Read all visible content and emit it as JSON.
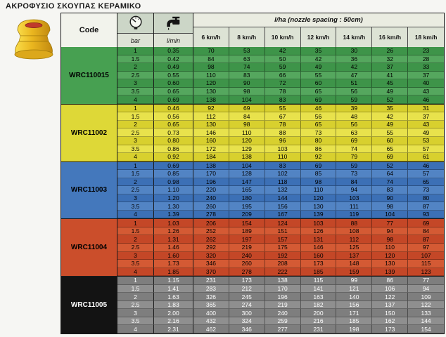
{
  "title": "ΑΚΡΟΦΥΣΙΟ ΣΚΟΥΠΑΣ ΚΕΡΑΜΙΚΟ",
  "table": {
    "code_label": "Code",
    "bar_label": "bar",
    "lmin_label": "l/min",
    "lha_label": "l/ha (nozzle spacing : 50cm)",
    "speeds": [
      "6 km/h",
      "8 km/h",
      "10 km/h",
      "12 km/h",
      "14 km/h",
      "16 km/h",
      "18 km/h"
    ],
    "icons": {
      "pressure": "pressure-gauge-icon",
      "flow": "tap-icon"
    }
  },
  "nozzle_image": {
    "body_color": "#e9b81f",
    "tip_color": "#c0392b"
  },
  "groups": [
    {
      "code": "WRC110015",
      "iso_color": "green",
      "colors": {
        "row": "#3e9449",
        "row_alt": "#55a75e",
        "code_bg": "#47a051",
        "text": "#000000",
        "code_text": "#000000"
      },
      "rows": [
        {
          "bar": "1",
          "lmin": "0.35",
          "lha": [
            "70",
            "53",
            "42",
            "35",
            "30",
            "26",
            "23"
          ]
        },
        {
          "bar": "1.5",
          "lmin": "0.42",
          "lha": [
            "84",
            "63",
            "50",
            "42",
            "36",
            "32",
            "28"
          ]
        },
        {
          "bar": "2",
          "lmin": "0.49",
          "lha": [
            "98",
            "74",
            "59",
            "49",
            "42",
            "37",
            "33"
          ]
        },
        {
          "bar": "2.5",
          "lmin": "0.55",
          "lha": [
            "110",
            "83",
            "66",
            "55",
            "47",
            "41",
            "37"
          ]
        },
        {
          "bar": "3",
          "lmin": "0.60",
          "lha": [
            "120",
            "90",
            "72",
            "60",
            "51",
            "45",
            "40"
          ]
        },
        {
          "bar": "3.5",
          "lmin": "0.65",
          "lha": [
            "130",
            "98",
            "78",
            "65",
            "56",
            "49",
            "43"
          ]
        },
        {
          "bar": "4",
          "lmin": "0.69",
          "lha": [
            "138",
            "104",
            "83",
            "69",
            "59",
            "52",
            "46"
          ]
        }
      ]
    },
    {
      "code": "WRC11002",
      "iso_color": "yellow",
      "colors": {
        "row": "#d8d02e",
        "row_alt": "#e8e24c",
        "code_bg": "#ded837",
        "text": "#000000",
        "code_text": "#000000"
      },
      "rows": [
        {
          "bar": "1",
          "lmin": "0.46",
          "lha": [
            "92",
            "69",
            "55",
            "46",
            "39",
            "35",
            "31"
          ]
        },
        {
          "bar": "1.5",
          "lmin": "0.56",
          "lha": [
            "112",
            "84",
            "67",
            "56",
            "48",
            "42",
            "37"
          ]
        },
        {
          "bar": "2",
          "lmin": "0.65",
          "lha": [
            "130",
            "98",
            "78",
            "65",
            "56",
            "49",
            "43"
          ]
        },
        {
          "bar": "2.5",
          "lmin": "0.73",
          "lha": [
            "146",
            "110",
            "88",
            "73",
            "63",
            "55",
            "49"
          ]
        },
        {
          "bar": "3",
          "lmin": "0.80",
          "lha": [
            "160",
            "120",
            "96",
            "80",
            "69",
            "60",
            "53"
          ]
        },
        {
          "bar": "3.5",
          "lmin": "0.86",
          "lha": [
            "172",
            "129",
            "103",
            "86",
            "74",
            "65",
            "57"
          ]
        },
        {
          "bar": "4",
          "lmin": "0.92",
          "lha": [
            "184",
            "138",
            "110",
            "92",
            "79",
            "69",
            "61"
          ]
        }
      ]
    },
    {
      "code": "WRC11003",
      "iso_color": "blue",
      "colors": {
        "row": "#3c70b6",
        "row_alt": "#5284c4",
        "code_bg": "#4478bc",
        "text": "#000000",
        "code_text": "#000000"
      },
      "rows": [
        {
          "bar": "1",
          "lmin": "0.69",
          "lha": [
            "138",
            "104",
            "83",
            "69",
            "59",
            "52",
            "46"
          ]
        },
        {
          "bar": "1.5",
          "lmin": "0.85",
          "lha": [
            "170",
            "128",
            "102",
            "85",
            "73",
            "64",
            "57"
          ]
        },
        {
          "bar": "2",
          "lmin": "0.98",
          "lha": [
            "196",
            "147",
            "118",
            "98",
            "84",
            "74",
            "65"
          ]
        },
        {
          "bar": "2.5",
          "lmin": "1.10",
          "lha": [
            "220",
            "165",
            "132",
            "110",
            "94",
            "83",
            "73"
          ]
        },
        {
          "bar": "3",
          "lmin": "1.20",
          "lha": [
            "240",
            "180",
            "144",
            "120",
            "103",
            "90",
            "80"
          ]
        },
        {
          "bar": "3.5",
          "lmin": "1.30",
          "lha": [
            "260",
            "195",
            "156",
            "130",
            "111",
            "98",
            "87"
          ]
        },
        {
          "bar": "4",
          "lmin": "1.39",
          "lha": [
            "278",
            "209",
            "167",
            "139",
            "119",
            "104",
            "93"
          ]
        }
      ]
    },
    {
      "code": "WRC11004",
      "iso_color": "red",
      "colors": {
        "row": "#c44727",
        "row_alt": "#d45a34",
        "code_bg": "#cb4e2b",
        "text": "#000000",
        "code_text": "#000000"
      },
      "rows": [
        {
          "bar": "1",
          "lmin": "1.03",
          "lha": [
            "206",
            "154",
            "124",
            "103",
            "88",
            "77",
            "69"
          ]
        },
        {
          "bar": "1.5",
          "lmin": "1.26",
          "lha": [
            "252",
            "189",
            "151",
            "126",
            "108",
            "94",
            "84"
          ]
        },
        {
          "bar": "2",
          "lmin": "1.31",
          "lha": [
            "262",
            "197",
            "157",
            "131",
            "112",
            "98",
            "87"
          ]
        },
        {
          "bar": "2.5",
          "lmin": "1.46",
          "lha": [
            "292",
            "219",
            "175",
            "146",
            "125",
            "110",
            "97"
          ]
        },
        {
          "bar": "3",
          "lmin": "1.60",
          "lha": [
            "320",
            "240",
            "192",
            "160",
            "137",
            "120",
            "107"
          ]
        },
        {
          "bar": "3.5",
          "lmin": "1.73",
          "lha": [
            "346",
            "260",
            "208",
            "173",
            "148",
            "130",
            "115"
          ]
        },
        {
          "bar": "4",
          "lmin": "1.85",
          "lha": [
            "370",
            "278",
            "222",
            "185",
            "159",
            "139",
            "123"
          ]
        }
      ]
    },
    {
      "code": "WRC11005",
      "iso_color": "black",
      "colors": {
        "row": "#7e7e7e",
        "row_alt": "#8f8f8f",
        "code_bg": "#131313",
        "text": "#ffffff",
        "code_text": "#ffffff"
      },
      "rows": [
        {
          "bar": "1",
          "lmin": "1.15",
          "lha": [
            "231",
            "173",
            "138",
            "115",
            "99",
            "86",
            "77"
          ]
        },
        {
          "bar": "1.5",
          "lmin": "1.41",
          "lha": [
            "283",
            "212",
            "170",
            "141",
            "121",
            "106",
            "94"
          ]
        },
        {
          "bar": "2",
          "lmin": "1.63",
          "lha": [
            "326",
            "245",
            "196",
            "163",
            "140",
            "122",
            "109"
          ]
        },
        {
          "bar": "2.5",
          "lmin": "1.83",
          "lha": [
            "365",
            "274",
            "219",
            "182",
            "156",
            "137",
            "122"
          ]
        },
        {
          "bar": "3",
          "lmin": "2.00",
          "lha": [
            "400",
            "300",
            "240",
            "200",
            "171",
            "150",
            "133"
          ]
        },
        {
          "bar": "3.5",
          "lmin": "2.16",
          "lha": [
            "432",
            "324",
            "259",
            "216",
            "185",
            "162",
            "144"
          ]
        },
        {
          "bar": "4",
          "lmin": "2.31",
          "lha": [
            "462",
            "346",
            "277",
            "231",
            "198",
            "173",
            "154"
          ]
        }
      ]
    }
  ]
}
